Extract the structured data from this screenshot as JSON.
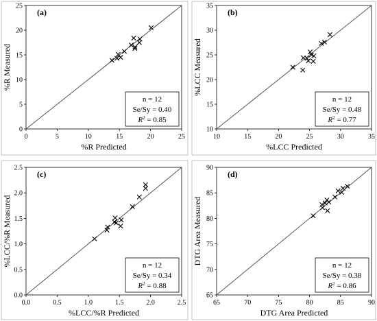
{
  "chart_data": [
    {
      "type": "scatter",
      "panel_label": "(a)",
      "xlabel": "%R Predicted",
      "ylabel": "%R Measured",
      "xlim": [
        0,
        25
      ],
      "ylim": [
        0,
        25
      ],
      "xticks": [
        "0",
        "5",
        "10",
        "15",
        "20",
        "25"
      ],
      "yticks": [
        "0",
        "5",
        "10",
        "15",
        "20",
        "25"
      ],
      "reference_line": "1:1",
      "grid": false,
      "stats": [
        "n = 12",
        "Se/Sy = 0.40",
        "R² = 0.85"
      ],
      "stats_placement": "bottom-right",
      "points": [
        [
          13.8,
          13.9
        ],
        [
          14.6,
          14.3
        ],
        [
          14.8,
          15.1
        ],
        [
          15.2,
          14.5
        ],
        [
          15.8,
          15.7
        ],
        [
          16.9,
          17.0
        ],
        [
          17.3,
          18.4
        ],
        [
          17.5,
          16.6
        ],
        [
          17.5,
          16.3
        ],
        [
          18.2,
          17.5
        ],
        [
          18.3,
          18.2
        ],
        [
          20.1,
          20.5
        ]
      ]
    },
    {
      "type": "scatter",
      "panel_label": "(b)",
      "xlabel": "%LCC Predicted",
      "ylabel": "%LCC Measured",
      "xlim": [
        10,
        35
      ],
      "ylim": [
        10,
        35
      ],
      "xticks": [
        "10",
        "15",
        "20",
        "25",
        "30",
        "35"
      ],
      "yticks": [
        "10",
        "15",
        "20",
        "25",
        "30",
        "35"
      ],
      "reference_line": "1:1",
      "grid": false,
      "stats": [
        "n = 12",
        "Se/Sy = 0.48",
        "R² = 0.77"
      ],
      "stats_placement": "bottom-right",
      "points": [
        [
          22.3,
          22.5
        ],
        [
          23.9,
          21.9
        ],
        [
          24.0,
          24.4
        ],
        [
          24.6,
          24.3
        ],
        [
          24.8,
          23.8
        ],
        [
          25.1,
          25.6
        ],
        [
          25.3,
          25.0
        ],
        [
          25.6,
          23.7
        ],
        [
          25.7,
          24.8
        ],
        [
          26.9,
          27.3
        ],
        [
          27.4,
          27.6
        ],
        [
          28.3,
          29.1
        ]
      ]
    },
    {
      "type": "scatter",
      "panel_label": "(c)",
      "xlabel": "%LCC/%R Predicted",
      "ylabel": "%LCC/%R Measured",
      "xlim": [
        0.0,
        2.5
      ],
      "ylim": [
        0.0,
        2.5
      ],
      "xticks": [
        "0.0",
        "0.5",
        "1.0",
        "1.5",
        "2.0",
        "2.5"
      ],
      "yticks": [
        "0.0",
        "0.5",
        "1.0",
        "1.5",
        "2.0",
        "2.5"
      ],
      "reference_line": "1:1",
      "grid": false,
      "stats": [
        "n = 12",
        "Se/Sy = 0.34",
        "R² = 0.88"
      ],
      "stats_placement": "bottom-right",
      "points": [
        [
          1.1,
          1.1
        ],
        [
          1.3,
          1.27
        ],
        [
          1.31,
          1.33
        ],
        [
          1.42,
          1.43
        ],
        [
          1.43,
          1.51
        ],
        [
          1.45,
          1.41
        ],
        [
          1.52,
          1.35
        ],
        [
          1.53,
          1.47
        ],
        [
          1.71,
          1.73
        ],
        [
          1.82,
          1.92
        ],
        [
          1.92,
          2.09
        ],
        [
          1.92,
          2.16
        ]
      ]
    },
    {
      "type": "scatter",
      "panel_label": "(d)",
      "xlabel": "DTG Area Predicted",
      "ylabel": "DTG Area Measured",
      "xlim": [
        65,
        90
      ],
      "ylim": [
        65,
        90
      ],
      "xticks": [
        "65",
        "70",
        "75",
        "80",
        "85",
        "90"
      ],
      "yticks": [
        "65",
        "70",
        "75",
        "80",
        "85",
        "90"
      ],
      "reference_line": "1:1",
      "grid": false,
      "stats": [
        "n = 12",
        "Se/Sy = 0.38",
        "R² = 0.86"
      ],
      "stats_placement": "bottom-right",
      "points": [
        [
          80.6,
          80.5
        ],
        [
          82.0,
          82.7
        ],
        [
          82.1,
          82.1
        ],
        [
          82.5,
          83.0
        ],
        [
          82.8,
          83.6
        ],
        [
          82.9,
          81.5
        ],
        [
          83.1,
          83.2
        ],
        [
          84.1,
          84.2
        ],
        [
          84.6,
          85.4
        ],
        [
          85.2,
          85.1
        ],
        [
          85.4,
          85.9
        ],
        [
          86.1,
          86.3
        ]
      ]
    }
  ]
}
